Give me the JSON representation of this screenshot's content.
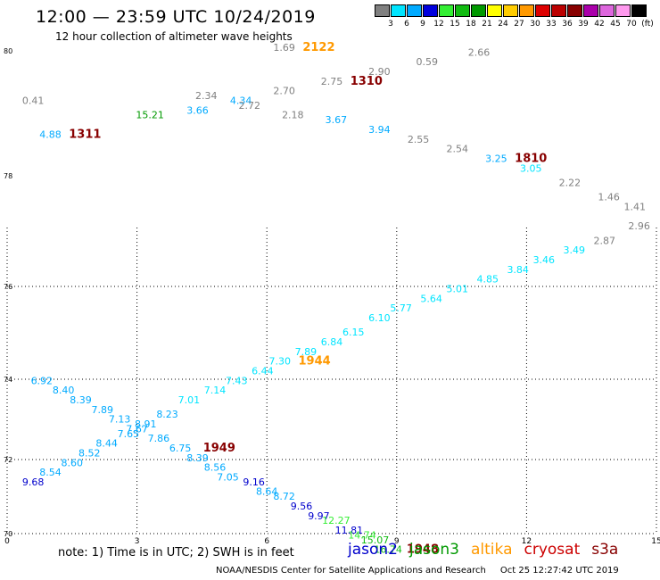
{
  "header": {
    "title": "12:00 — 23:59 UTC 10/24/2019",
    "subtitle": "12 hour collection of altimeter wave heights"
  },
  "colorbar": {
    "colors": [
      "#808080",
      "#00e5ff",
      "#00aaff",
      "#0000dd",
      "#33ee33",
      "#11bb11",
      "#009900",
      "#ffff00",
      "#ffcc00",
      "#ff9900",
      "#dd0000",
      "#bb0000",
      "#880000",
      "#aa00aa",
      "#dd66dd",
      "#ff99ee",
      "#000000"
    ],
    "labels": [
      "3",
      "6",
      "9",
      "12",
      "15",
      "18",
      "21",
      "24",
      "27",
      "30",
      "33",
      "36",
      "39",
      "42",
      "45",
      "70",
      "(ft)"
    ]
  },
  "axes": {
    "x_ticks": [
      "0",
      "3",
      "6",
      "9",
      "12",
      "15"
    ],
    "y_ticks": [
      "80",
      "78",
      "76",
      "74",
      "72",
      "70"
    ]
  },
  "satellites": {
    "jason2": {
      "name": "jason2",
      "color": "#0000cc"
    },
    "jason3": {
      "name": "jason3",
      "color": "#009900"
    },
    "altika": {
      "name": "altika",
      "color": "#ff9900"
    },
    "cryosat": {
      "name": "cryosat",
      "color": "#cc0000"
    },
    "s3a": {
      "name": "s3a",
      "color": "#880000"
    }
  },
  "chart_data": {
    "type": "scatter",
    "title": "12:00 — 23:59 UTC 10/24/2019",
    "subtitle": "12 hour collection of altimeter wave heights",
    "x_range": [
      0,
      15
    ],
    "y_range": [
      70,
      80
    ],
    "grid": true,
    "wave_heights": [
      {
        "v": "1.69",
        "x": 6.4,
        "y": 80.0,
        "c": "#808080"
      },
      {
        "v": "2122",
        "x": 7.2,
        "y": 80.0,
        "c": "#ff9900",
        "b": true
      },
      {
        "v": "0.41",
        "x": 0.6,
        "y": 78.9,
        "c": "#808080"
      },
      {
        "v": "2.34",
        "x": 4.6,
        "y": 79.0,
        "c": "#808080"
      },
      {
        "v": "4.34",
        "x": 5.4,
        "y": 78.9,
        "c": "#00aaff"
      },
      {
        "v": "2.72",
        "x": 5.6,
        "y": 78.8,
        "c": "#808080"
      },
      {
        "v": "2.70",
        "x": 6.4,
        "y": 79.1,
        "c": "#808080"
      },
      {
        "v": "2.90",
        "x": 8.6,
        "y": 79.5,
        "c": "#808080"
      },
      {
        "v": "0.59",
        "x": 9.7,
        "y": 79.7,
        "c": "#808080"
      },
      {
        "v": "2.66",
        "x": 10.9,
        "y": 79.9,
        "c": "#808080"
      },
      {
        "v": "2.75",
        "x": 7.5,
        "y": 79.3,
        "c": "#808080"
      },
      {
        "v": "1310",
        "x": 8.3,
        "y": 79.3,
        "c": "#880000",
        "b": true
      },
      {
        "v": "3.66",
        "x": 4.4,
        "y": 78.7,
        "c": "#00aaff"
      },
      {
        "v": "15.21",
        "x": 3.3,
        "y": 78.6,
        "c": "#009900"
      },
      {
        "v": "2.18",
        "x": 6.6,
        "y": 78.6,
        "c": "#808080"
      },
      {
        "v": "3.67",
        "x": 7.6,
        "y": 78.5,
        "c": "#00aaff"
      },
      {
        "v": "3.94",
        "x": 8.6,
        "y": 78.3,
        "c": "#00aaff"
      },
      {
        "v": "2.55",
        "x": 9.5,
        "y": 78.1,
        "c": "#808080"
      },
      {
        "v": "4.88",
        "x": 1.0,
        "y": 78.2,
        "c": "#00aaff"
      },
      {
        "v": "1311",
        "x": 1.8,
        "y": 78.2,
        "c": "#880000",
        "b": true
      },
      {
        "v": "2.54",
        "x": 10.4,
        "y": 77.9,
        "c": "#808080"
      },
      {
        "v": "3.25",
        "x": 11.3,
        "y": 77.7,
        "c": "#00aaff"
      },
      {
        "v": "1810",
        "x": 12.1,
        "y": 77.7,
        "c": "#880000",
        "b": true
      },
      {
        "v": "3.05",
        "x": 12.1,
        "y": 77.5,
        "c": "#00e5ff"
      },
      {
        "v": "2.22",
        "x": 13.0,
        "y": 77.2,
        "c": "#808080"
      },
      {
        "v": "1.46",
        "x": 13.9,
        "y": 76.9,
        "c": "#808080"
      },
      {
        "v": "1.41",
        "x": 14.5,
        "y": 76.7,
        "c": "#808080"
      },
      {
        "v": "2.96",
        "x": 14.6,
        "y": 76.3,
        "c": "#808080"
      },
      {
        "v": "2.87",
        "x": 13.8,
        "y": 76.0,
        "c": "#808080"
      },
      {
        "v": "3.49",
        "x": 13.1,
        "y": 75.8,
        "c": "#00e5ff"
      },
      {
        "v": "3.46",
        "x": 12.4,
        "y": 75.6,
        "c": "#00e5ff"
      },
      {
        "v": "3.84",
        "x": 11.8,
        "y": 75.4,
        "c": "#00e5ff"
      },
      {
        "v": "4.85",
        "x": 11.1,
        "y": 75.2,
        "c": "#00e5ff"
      },
      {
        "v": "5.01",
        "x": 10.4,
        "y": 75.0,
        "c": "#00e5ff"
      },
      {
        "v": "5.64",
        "x": 9.8,
        "y": 74.8,
        "c": "#00e5ff"
      },
      {
        "v": "5.77",
        "x": 9.1,
        "y": 74.6,
        "c": "#00e5ff"
      },
      {
        "v": "6.10",
        "x": 8.6,
        "y": 74.4,
        "c": "#00e5ff"
      },
      {
        "v": "6.15",
        "x": 8.0,
        "y": 74.1,
        "c": "#00e5ff"
      },
      {
        "v": "6.84",
        "x": 7.5,
        "y": 73.9,
        "c": "#00e5ff"
      },
      {
        "v": "7.89",
        "x": 6.9,
        "y": 73.7,
        "c": "#00e5ff"
      },
      {
        "v": "1944",
        "x": 7.1,
        "y": 73.5,
        "c": "#ff9900",
        "b": true
      },
      {
        "v": "7.30",
        "x": 6.3,
        "y": 73.5,
        "c": "#00e5ff"
      },
      {
        "v": "6.44",
        "x": 5.9,
        "y": 73.3,
        "c": "#00e5ff"
      },
      {
        "v": "7.43",
        "x": 5.3,
        "y": 73.1,
        "c": "#00e5ff"
      },
      {
        "v": "7.14",
        "x": 4.8,
        "y": 72.9,
        "c": "#00e5ff"
      },
      {
        "v": "7.01",
        "x": 4.2,
        "y": 72.7,
        "c": "#00e5ff"
      },
      {
        "v": "6.92",
        "x": 0.8,
        "y": 73.1,
        "c": "#00aaff"
      },
      {
        "v": "8.40",
        "x": 1.3,
        "y": 72.9,
        "c": "#00aaff"
      },
      {
        "v": "8.39",
        "x": 1.7,
        "y": 72.7,
        "c": "#00aaff"
      },
      {
        "v": "7.89",
        "x": 2.2,
        "y": 72.5,
        "c": "#00aaff"
      },
      {
        "v": "7.13",
        "x": 2.6,
        "y": 72.3,
        "c": "#00aaff"
      },
      {
        "v": "8.91",
        "x": 3.2,
        "y": 72.2,
        "c": "#00aaff"
      },
      {
        "v": "7.67",
        "x": 3.0,
        "y": 72.1,
        "c": "#00aaff"
      },
      {
        "v": "8.23",
        "x": 3.7,
        "y": 72.4,
        "c": "#00aaff"
      },
      {
        "v": "7.65",
        "x": 2.8,
        "y": 72.0,
        "c": "#00aaff"
      },
      {
        "v": "7.86",
        "x": 3.5,
        "y": 71.9,
        "c": "#00aaff"
      },
      {
        "v": "8.44",
        "x": 2.3,
        "y": 71.8,
        "c": "#00aaff"
      },
      {
        "v": "6.75",
        "x": 4.0,
        "y": 71.7,
        "c": "#00aaff"
      },
      {
        "v": "1949",
        "x": 4.9,
        "y": 71.7,
        "c": "#880000",
        "b": true
      },
      {
        "v": "8.52",
        "x": 1.9,
        "y": 71.6,
        "c": "#00aaff"
      },
      {
        "v": "8.39",
        "x": 4.4,
        "y": 71.5,
        "c": "#00aaff"
      },
      {
        "v": "8.60",
        "x": 1.5,
        "y": 71.4,
        "c": "#00aaff"
      },
      {
        "v": "8.56",
        "x": 4.8,
        "y": 71.3,
        "c": "#00aaff"
      },
      {
        "v": "8.54",
        "x": 1.0,
        "y": 71.2,
        "c": "#00aaff"
      },
      {
        "v": "7.05",
        "x": 5.1,
        "y": 71.1,
        "c": "#00aaff"
      },
      {
        "v": "9.68",
        "x": 0.6,
        "y": 71.0,
        "c": "#0000cc"
      },
      {
        "v": "9.16",
        "x": 5.7,
        "y": 71.0,
        "c": "#0000cc"
      },
      {
        "v": "8.64",
        "x": 6.0,
        "y": 70.8,
        "c": "#00aaff"
      },
      {
        "v": "8.72",
        "x": 6.4,
        "y": 70.7,
        "c": "#00aaff"
      },
      {
        "v": "9.56",
        "x": 6.8,
        "y": 70.5,
        "c": "#0000cc"
      },
      {
        "v": "9.97",
        "x": 7.2,
        "y": 70.3,
        "c": "#0000cc"
      },
      {
        "v": "12.27",
        "x": 7.6,
        "y": 70.2,
        "c": "#33ee33"
      },
      {
        "v": "11.81",
        "x": 7.9,
        "y": 70.0,
        "c": "#0000cc"
      },
      {
        "v": "14.74",
        "x": 8.2,
        "y": 69.9,
        "c": "#33ee33"
      },
      {
        "v": "15.07",
        "x": 8.5,
        "y": 69.8,
        "c": "#11bb11"
      },
      {
        "v": "16.74",
        "x": 8.8,
        "y": 69.6,
        "c": "#11bb11"
      },
      {
        "v": "1948",
        "x": 9.6,
        "y": 69.6,
        "c": "#880000",
        "b": true
      }
    ]
  },
  "footer": {
    "note": "note:  1) Time is in UTC;  2) SWH is in feet",
    "agency": "NOAA/NESDIS Center for Satellite Applications and Research",
    "timestamp": "Oct 25 12:27:42 UTC 2019"
  }
}
